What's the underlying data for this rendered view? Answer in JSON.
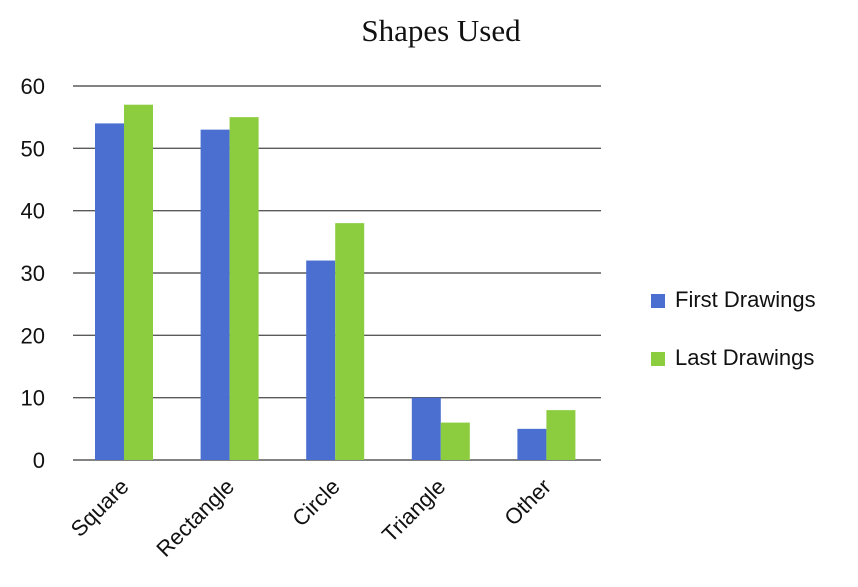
{
  "chart_data": {
    "type": "bar",
    "title": "Shapes Used",
    "xlabel": "",
    "ylabel": "",
    "categories": [
      "Square",
      "Rectangle",
      "Circle",
      "Triangle",
      "Other"
    ],
    "series": [
      {
        "name": "First Drawings",
        "color": "#4a6fd0",
        "values": [
          54,
          53,
          32,
          10,
          5
        ]
      },
      {
        "name": "Last Drawings",
        "color": "#8ccc3f",
        "values": [
          57,
          55,
          38,
          6,
          8
        ]
      }
    ],
    "ylim": [
      0,
      60
    ],
    "yticks": [
      0,
      10,
      20,
      30,
      40,
      50,
      60
    ],
    "grid": true,
    "legend_position": "right"
  }
}
